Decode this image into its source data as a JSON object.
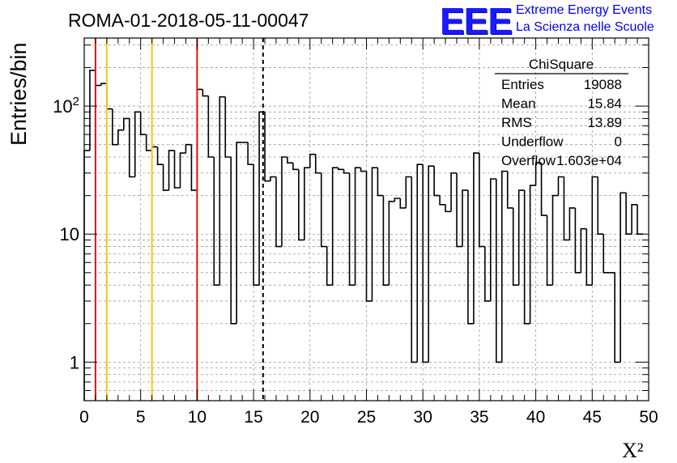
{
  "colors": {
    "histogram": "#000000",
    "red_line": "#ee1111",
    "yellow_line": "#f5c518",
    "dashed_line": "#000000",
    "grid": "#9a9a9a",
    "logo": "#0000ee"
  },
  "header": {
    "run_title": "ROMA-01-2018-05-11-00047"
  },
  "logo": {
    "mark": "EEE",
    "line1": "Extreme Energy Events",
    "line2": "La Scienza nelle Scuole"
  },
  "stats_box": {
    "title": "ChiSquare",
    "rows": [
      {
        "label": "Entries",
        "value": "19088"
      },
      {
        "label": "Mean",
        "value": "15.84"
      },
      {
        "label": "RMS",
        "value": "13.89"
      },
      {
        "label": "Underflow",
        "value": "0"
      },
      {
        "label": "Overflow",
        "value": "1.603e+04"
      }
    ]
  },
  "chart_data": {
    "type": "histogram",
    "title": "ROMA-01-2018-05-11-00047",
    "xlabel": "X²",
    "ylabel": "Entries/bin",
    "xlim": [
      0,
      50
    ],
    "ylim": [
      0.5,
      340
    ],
    "y_scale": "log",
    "grid": true,
    "legend": "stats box, top-right",
    "xticks": [
      0,
      5,
      10,
      15,
      20,
      25,
      30,
      35,
      40,
      45,
      50
    ],
    "xtick_labels": [
      "0",
      "5",
      "10",
      "15",
      "20",
      "25",
      "30",
      "35",
      "40",
      "45",
      "50"
    ],
    "yticks": [
      1,
      10,
      100
    ],
    "ytick_labels": [
      "1",
      "10",
      "10²"
    ],
    "bin_width": 0.5,
    "bin_start": 0,
    "counts": [
      45,
      190,
      145,
      150,
      95,
      50,
      65,
      80,
      28,
      90,
      60,
      45,
      48,
      35,
      22,
      45,
      23,
      43,
      50,
      22,
      135,
      120,
      40,
      4,
      118,
      40,
      2,
      52,
      52,
      35,
      4,
      90,
      26,
      28,
      8,
      40,
      36,
      32,
      9,
      33,
      42,
      30,
      8,
      4,
      33,
      32,
      30,
      4,
      33,
      31,
      3,
      33,
      20,
      4,
      18,
      19,
      16,
      28,
      1,
      35,
      1,
      34,
      20,
      17,
      15,
      30,
      8,
      22,
      2,
      43,
      8,
      3,
      27,
      1,
      31,
      16,
      4,
      22,
      2,
      24,
      36,
      14,
      4,
      20,
      28,
      9,
      16,
      5,
      11,
      4,
      28,
      10,
      5,
      5,
      1,
      21,
      10,
      17,
      10
    ],
    "vertical_lines": [
      {
        "x": 1,
        "style": "red"
      },
      {
        "x": 2,
        "style": "yellow"
      },
      {
        "x": 6,
        "style": "yellow"
      },
      {
        "x": 10,
        "style": "red"
      },
      {
        "x": 15.84,
        "style": "dashed"
      }
    ]
  }
}
